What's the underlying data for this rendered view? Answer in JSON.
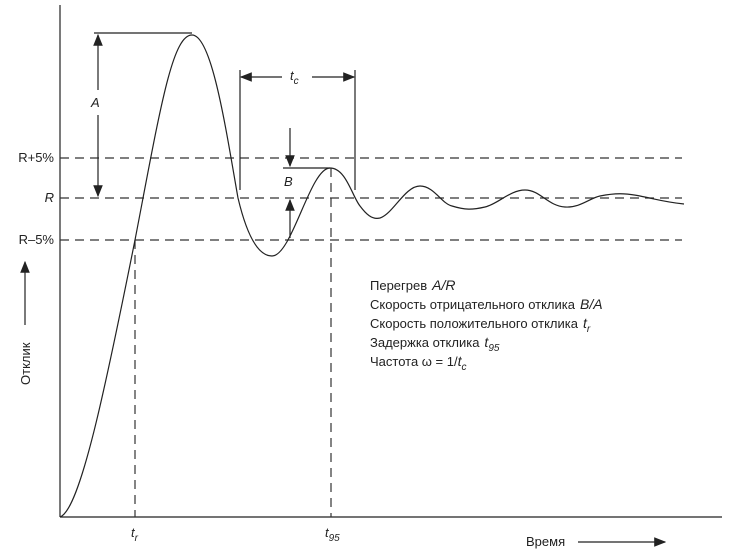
{
  "levels": {
    "upper": "R+5%",
    "target": "R",
    "lower": "R–5%"
  },
  "marks": {
    "a": "A",
    "b": "B",
    "tc": [
      "t",
      "c"
    ]
  },
  "axes": {
    "y_label": "Отклик",
    "x_label": "Время",
    "tr": [
      "t",
      "r"
    ],
    "t95": [
      "t",
      "95"
    ]
  },
  "notes": [
    [
      "Перегрев",
      "A/R"
    ],
    [
      "Скорость отрицательного отклика",
      "B/A"
    ],
    [
      "Скорость положительного отклика",
      "t",
      "r"
    ],
    [
      "Задержка отклика",
      "t",
      "95"
    ],
    [
      "Частота ω = 1/",
      "t",
      "c"
    ]
  ]
}
